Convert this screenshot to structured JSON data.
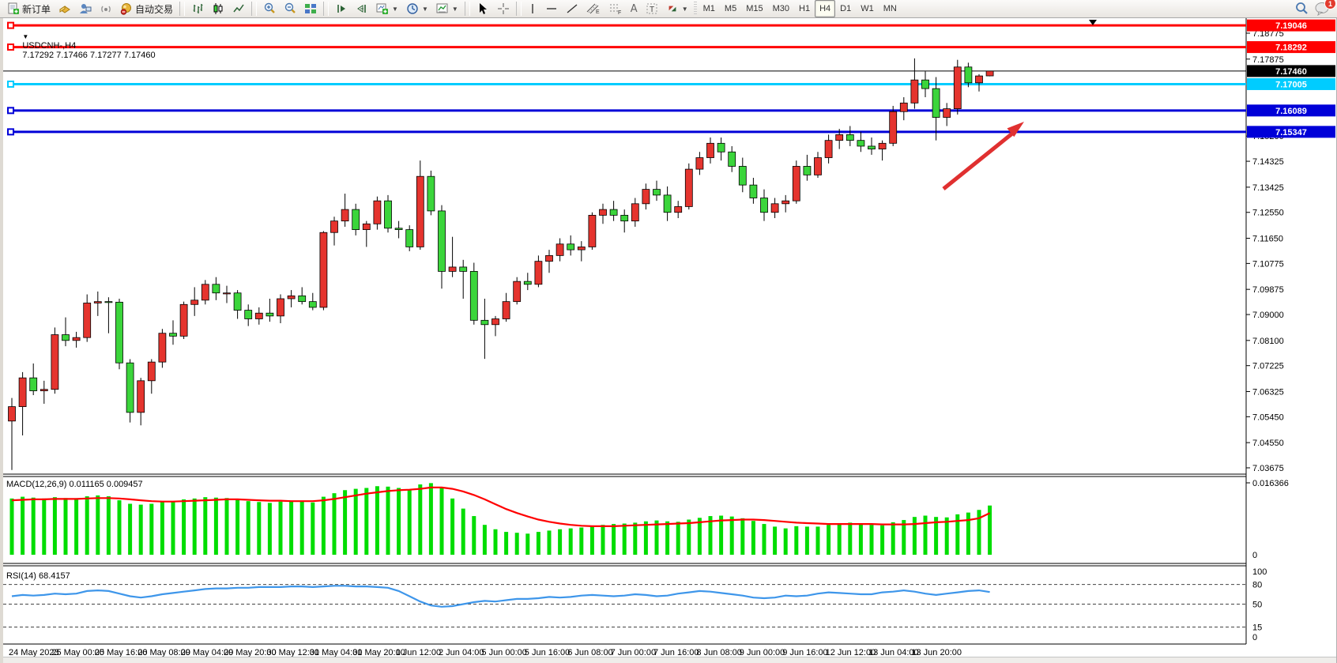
{
  "toolbar": {
    "new_order_label": "新订单",
    "auto_trading_label": "自动交易",
    "timeframes": [
      "M1",
      "M5",
      "M15",
      "M30",
      "H1",
      "H4",
      "D1",
      "W1",
      "MN"
    ],
    "active_timeframe": "H4",
    "chat_badge_count": "1",
    "icons": [
      "new-order-icon",
      "gold-box-icon",
      "community-icon",
      "signal-icon",
      "auto-trading-icon",
      "bar-chart-icon",
      "candlestick-chart-icon",
      "line-chart-icon",
      "zoom-in-icon",
      "zoom-out-icon",
      "tile-windows-icon",
      "scroll-to-end-icon",
      "chart-shift-icon",
      "new-chart-icon",
      "period-clock-icon",
      "templates-icon",
      "cursor-icon",
      "crosshair-icon",
      "vertical-line-icon",
      "horizontal-line-icon",
      "trendline-icon",
      "channel-icon",
      "fibonacci-icon",
      "text-icon",
      "text-label-icon",
      "arrows-icon",
      "search-icon",
      "chat-icon"
    ]
  },
  "chart": {
    "title_symbol": "USDCNH-,H4",
    "title_ohlc": "7.17292 7.17466 7.17277 7.17460",
    "macd_label": "MACD(12,26,9) 0.011165 0.009457",
    "rsi_label": "RSI(14) 68.4157",
    "colors": {
      "bull": "#e5342e",
      "bear": "#3bd53b",
      "wick": "#000000",
      "macd_bar": "#00dd00",
      "macd_signal": "#ff0000",
      "rsi_line": "#3e96ea",
      "line_red": "#ff0000",
      "line_cyan": "#00ccff",
      "line_blue": "#0000d8",
      "price_line": "#000000"
    },
    "price_ticks": [
      "7.18775",
      "7.17875",
      "7.15200",
      "7.14325",
      "7.13425",
      "7.12550",
      "7.11650",
      "7.10775",
      "7.09875",
      "7.09000",
      "7.08100",
      "7.07225",
      "7.06325",
      "7.05450",
      "7.04550",
      "7.03675"
    ],
    "axis_tags": [
      {
        "price": "7.19046",
        "value": 7.19046,
        "color": "#ff0000"
      },
      {
        "price": "7.18292",
        "value": 7.18292,
        "color": "#ff0000"
      },
      {
        "price": "7.17460",
        "value": 7.1746,
        "color": "#000000"
      },
      {
        "price": "7.17005",
        "value": 7.17005,
        "color": "#00ccff"
      },
      {
        "price": "7.16089",
        "value": 7.16089,
        "color": "#0000d8"
      },
      {
        "price": "7.15347",
        "value": 7.15347,
        "color": "#0000d8"
      }
    ],
    "hlines": [
      {
        "value": 7.19046,
        "color": "#ff0000",
        "width": 3,
        "anchor": true
      },
      {
        "value": 7.18292,
        "color": "#ff0000",
        "width": 3,
        "anchor": true
      },
      {
        "value": 7.1746,
        "color": "#000000",
        "width": 1,
        "anchor": false
      },
      {
        "value": 7.17005,
        "color": "#00ccff",
        "width": 3,
        "anchor": true
      },
      {
        "value": 7.16089,
        "color": "#0000d8",
        "width": 3,
        "anchor": true
      },
      {
        "value": 7.15347,
        "color": "#0000d8",
        "width": 3,
        "anchor": true
      }
    ],
    "macd_axis": [
      "0.016366",
      "0"
    ],
    "rsi_axis": [
      "100",
      "80",
      "50",
      "15",
      "0"
    ],
    "rsi_levels": [
      80,
      50,
      15
    ]
  },
  "chart_data": [
    {
      "type": "candlestick",
      "title": "USDCNH- H4",
      "ohlc_current": [
        7.17292,
        7.17466,
        7.17277,
        7.1746
      ],
      "ylim": [
        7.03675,
        7.19046
      ],
      "x_labels": [
        "24 May 2023",
        "25 May 00:00",
        "25 May 16:00",
        "26 May 08:00",
        "29 May 04:00",
        "29 May 20:00",
        "30 May 12:00",
        "31 May 04:00",
        "31 May 20:00",
        "1 Jun 12:00",
        "2 Jun 04:00",
        "5 Jun 00:00",
        "5 Jun 16:00",
        "6 Jun 08:00",
        "7 Jun 00:00",
        "7 Jun 16:00",
        "8 Jun 08:00",
        "9 Jun 00:00",
        "9 Jun 16:00",
        "12 Jun 12:00",
        "13 Jun 04:00",
        "13 Jun 20:00"
      ],
      "label_every_n_candles": 4,
      "candles_ohlc": [
        [
          7.053,
          7.061,
          7.036,
          7.058
        ],
        [
          7.058,
          7.07,
          7.048,
          7.068
        ],
        [
          7.068,
          7.073,
          7.062,
          7.0635
        ],
        [
          7.0635,
          7.067,
          7.059,
          7.064
        ],
        [
          7.064,
          7.0855,
          7.0625,
          7.083
        ],
        [
          7.083,
          7.089,
          7.079,
          7.081
        ],
        [
          7.081,
          7.084,
          7.0785,
          7.082
        ],
        [
          7.082,
          7.097,
          7.0805,
          7.094
        ],
        [
          7.094,
          7.098,
          7.0895,
          7.0945
        ],
        [
          7.0945,
          7.096,
          7.0835,
          7.0943
        ],
        [
          7.0943,
          7.0955,
          7.071,
          7.0732
        ],
        [
          7.0732,
          7.0745,
          7.0525,
          7.056
        ],
        [
          7.056,
          7.068,
          7.0515,
          7.067
        ],
        [
          7.067,
          7.0745,
          7.0625,
          7.0735
        ],
        [
          7.0735,
          7.085,
          7.0715,
          7.0835
        ],
        [
          7.0835,
          7.088,
          7.0795,
          7.0825
        ],
        [
          7.0825,
          7.0945,
          7.0815,
          7.0935
        ],
        [
          7.0935,
          7.0995,
          7.0895,
          7.095
        ],
        [
          7.095,
          7.102,
          7.0935,
          7.1005
        ],
        [
          7.1005,
          7.103,
          7.095,
          7.0975
        ],
        [
          7.0975,
          7.1,
          7.094,
          7.0975
        ],
        [
          7.0975,
          7.0985,
          7.0885,
          7.0915
        ],
        [
          7.0915,
          7.0935,
          7.086,
          7.0885
        ],
        [
          7.0885,
          7.0925,
          7.0865,
          7.0905
        ],
        [
          7.0905,
          7.0955,
          7.0875,
          7.0895
        ],
        [
          7.0895,
          7.097,
          7.087,
          7.0955
        ],
        [
          7.0955,
          7.0985,
          7.0925,
          7.0965
        ],
        [
          7.0965,
          7.0995,
          7.0935,
          7.0945
        ],
        [
          7.0945,
          7.0975,
          7.0915,
          7.0925
        ],
        [
          7.0925,
          7.119,
          7.0915,
          7.1185
        ],
        [
          7.1185,
          7.124,
          7.114,
          7.1225
        ],
        [
          7.1225,
          7.132,
          7.1205,
          7.1265
        ],
        [
          7.1265,
          7.1285,
          7.1175,
          7.1195
        ],
        [
          7.1195,
          7.1225,
          7.1135,
          7.1215
        ],
        [
          7.1215,
          7.131,
          7.1195,
          7.1295
        ],
        [
          7.1295,
          7.1315,
          7.1185,
          7.12
        ],
        [
          7.12,
          7.1225,
          7.1165,
          7.1195
        ],
        [
          7.1195,
          7.121,
          7.112,
          7.1135
        ],
        [
          7.1135,
          7.1435,
          7.1125,
          7.138
        ],
        [
          7.138,
          7.14,
          7.1245,
          7.126
        ],
        [
          7.126,
          7.128,
          7.099,
          7.105
        ],
        [
          7.105,
          7.117,
          7.103,
          7.1065
        ],
        [
          7.1065,
          7.109,
          7.0955,
          7.105
        ],
        [
          7.105,
          7.108,
          7.0865,
          7.088
        ],
        [
          7.088,
          7.0955,
          7.0746,
          7.0865
        ],
        [
          7.0865,
          7.0895,
          7.0825,
          7.0885
        ],
        [
          7.0885,
          7.0975,
          7.0875,
          7.0945
        ],
        [
          7.0945,
          7.103,
          7.0935,
          7.1015
        ],
        [
          7.1015,
          7.1045,
          7.0985,
          7.1005
        ],
        [
          7.1005,
          7.1105,
          7.0995,
          7.1085
        ],
        [
          7.1085,
          7.1125,
          7.1045,
          7.1105
        ],
        [
          7.1105,
          7.1165,
          7.1085,
          7.1145
        ],
        [
          7.1145,
          7.1175,
          7.1105,
          7.1125
        ],
        [
          7.1125,
          7.1155,
          7.1085,
          7.1135
        ],
        [
          7.1135,
          7.1255,
          7.1125,
          7.1245
        ],
        [
          7.1245,
          7.1285,
          7.1215,
          7.1265
        ],
        [
          7.1265,
          7.1295,
          7.1225,
          7.1245
        ],
        [
          7.1245,
          7.1265,
          7.1185,
          7.1225
        ],
        [
          7.1225,
          7.1305,
          7.1205,
          7.1285
        ],
        [
          7.1285,
          7.1355,
          7.1265,
          7.1335
        ],
        [
          7.1335,
          7.1365,
          7.1295,
          7.1315
        ],
        [
          7.1315,
          7.1345,
          7.1225,
          7.1255
        ],
        [
          7.1255,
          7.1295,
          7.1235,
          7.1275
        ],
        [
          7.1275,
          7.1425,
          7.1265,
          7.1405
        ],
        [
          7.1405,
          7.1465,
          7.1385,
          7.1445
        ],
        [
          7.1445,
          7.1515,
          7.1425,
          7.1495
        ],
        [
          7.1495,
          7.1515,
          7.1435,
          7.1465
        ],
        [
          7.1465,
          7.1485,
          7.1395,
          7.1415
        ],
        [
          7.1415,
          7.1445,
          7.1325,
          7.135
        ],
        [
          7.135,
          7.1375,
          7.1285,
          7.1305
        ],
        [
          7.1305,
          7.1335,
          7.1225,
          7.1255
        ],
        [
          7.1255,
          7.1305,
          7.1235,
          7.1285
        ],
        [
          7.1285,
          7.1315,
          7.1255,
          7.1295
        ],
        [
          7.1295,
          7.1435,
          7.1285,
          7.1415
        ],
        [
          7.1415,
          7.1455,
          7.1365,
          7.1385
        ],
        [
          7.1385,
          7.1465,
          7.1375,
          7.1445
        ],
        [
          7.1445,
          7.1525,
          7.1425,
          7.1505
        ],
        [
          7.1505,
          7.1545,
          7.1475,
          7.1525
        ],
        [
          7.1525,
          7.1555,
          7.1485,
          7.1505
        ],
        [
          7.1505,
          7.1535,
          7.1465,
          7.1485
        ],
        [
          7.1485,
          7.1515,
          7.1455,
          7.1475
        ],
        [
          7.1475,
          7.1505,
          7.1435,
          7.1495
        ],
        [
          7.1495,
          7.1625,
          7.1485,
          7.1605
        ],
        [
          7.1605,
          7.1655,
          7.1575,
          7.1635
        ],
        [
          7.1635,
          7.179,
          7.1615,
          7.1715
        ],
        [
          7.1715,
          7.1745,
          7.1655,
          7.1685
        ],
        [
          7.1685,
          7.1725,
          7.1505,
          7.1585
        ],
        [
          7.1585,
          7.1635,
          7.1555,
          7.1615
        ],
        [
          7.1615,
          7.1785,
          7.1595,
          7.176
        ],
        [
          7.176,
          7.1775,
          7.169,
          7.1705
        ],
        [
          7.1705,
          7.1735,
          7.1675,
          7.1729
        ],
        [
          7.17292,
          7.17466,
          7.17277,
          7.1746
        ]
      ],
      "annotation_arrow": {
        "color": "#e03030",
        "direction": "up-right",
        "points_at_value": 7.15347
      }
    },
    {
      "type": "bar",
      "title": "MACD(12,26,9)",
      "current_values": [
        0.011165,
        0.009457
      ],
      "ylim": [
        0,
        0.016366
      ],
      "values": [
        0.0128,
        0.0132,
        0.013,
        0.0128,
        0.0131,
        0.0129,
        0.0127,
        0.0133,
        0.0135,
        0.0133,
        0.0124,
        0.0116,
        0.0114,
        0.0116,
        0.012,
        0.0122,
        0.0126,
        0.0128,
        0.0131,
        0.013,
        0.0129,
        0.0126,
        0.0122,
        0.012,
        0.0118,
        0.0121,
        0.0122,
        0.0121,
        0.0119,
        0.0132,
        0.014,
        0.0147,
        0.015,
        0.0152,
        0.0156,
        0.0155,
        0.0152,
        0.0148,
        0.016,
        0.0163,
        0.0152,
        0.0128,
        0.0105,
        0.0088,
        0.0068,
        0.0058,
        0.0052,
        0.005,
        0.0048,
        0.0052,
        0.0055,
        0.0058,
        0.006,
        0.0062,
        0.0065,
        0.0068,
        0.007,
        0.0071,
        0.0073,
        0.0076,
        0.0078,
        0.0076,
        0.0075,
        0.008,
        0.0084,
        0.0088,
        0.0089,
        0.0087,
        0.0083,
        0.0077,
        0.007,
        0.0064,
        0.006,
        0.0065,
        0.0064,
        0.0064,
        0.0068,
        0.0072,
        0.0073,
        0.0071,
        0.0068,
        0.0067,
        0.0074,
        0.0079,
        0.0086,
        0.0089,
        0.0086,
        0.0085,
        0.0092,
        0.0096,
        0.0102,
        0.0112
      ],
      "signal": [
        0.0124,
        0.0125,
        0.0126,
        0.0126,
        0.0127,
        0.0127,
        0.0127,
        0.0128,
        0.0129,
        0.0129,
        0.0128,
        0.0126,
        0.0124,
        0.0122,
        0.0121,
        0.0121,
        0.0122,
        0.0123,
        0.0124,
        0.0125,
        0.0126,
        0.0126,
        0.0125,
        0.0124,
        0.0123,
        0.0123,
        0.0122,
        0.0122,
        0.0122,
        0.0124,
        0.0127,
        0.0131,
        0.0135,
        0.0139,
        0.0142,
        0.0145,
        0.0147,
        0.0148,
        0.015,
        0.0153,
        0.0153,
        0.015,
        0.0144,
        0.0136,
        0.0126,
        0.0115,
        0.0104,
        0.0095,
        0.0087,
        0.008,
        0.0075,
        0.0071,
        0.0068,
        0.0066,
        0.0065,
        0.0065,
        0.0065,
        0.0066,
        0.0067,
        0.0068,
        0.0069,
        0.007,
        0.0071,
        0.0072,
        0.0074,
        0.0076,
        0.0078,
        0.0079,
        0.008,
        0.008,
        0.0079,
        0.0077,
        0.0075,
        0.0073,
        0.0072,
        0.0071,
        0.007,
        0.007,
        0.007,
        0.007,
        0.007,
        0.0069,
        0.0069,
        0.0069,
        0.007,
        0.0072,
        0.0074,
        0.0075,
        0.0077,
        0.0079,
        0.0083,
        0.0095
      ]
    },
    {
      "type": "line",
      "title": "RSI(14)",
      "current_value": 68.4157,
      "ylim": [
        0,
        100
      ],
      "levels": [
        80,
        50,
        15
      ],
      "values": [
        62,
        64,
        63,
        64,
        66,
        65,
        66,
        70,
        71,
        70,
        66,
        62,
        60,
        62,
        65,
        67,
        69,
        71,
        73,
        74,
        74,
        75,
        75,
        76,
        76,
        76,
        77,
        77,
        76,
        77,
        78,
        78,
        77,
        77,
        76,
        75,
        70,
        62,
        54,
        48,
        46,
        47,
        50,
        53,
        55,
        54,
        56,
        58,
        58,
        59,
        61,
        60,
        61,
        63,
        64,
        63,
        62,
        63,
        65,
        64,
        62,
        63,
        66,
        68,
        70,
        69,
        67,
        65,
        63,
        60,
        59,
        60,
        63,
        62,
        63,
        66,
        68,
        67,
        66,
        65,
        65,
        68,
        69,
        71,
        69,
        66,
        64,
        66,
        68,
        70,
        71,
        68.4
      ]
    }
  ]
}
